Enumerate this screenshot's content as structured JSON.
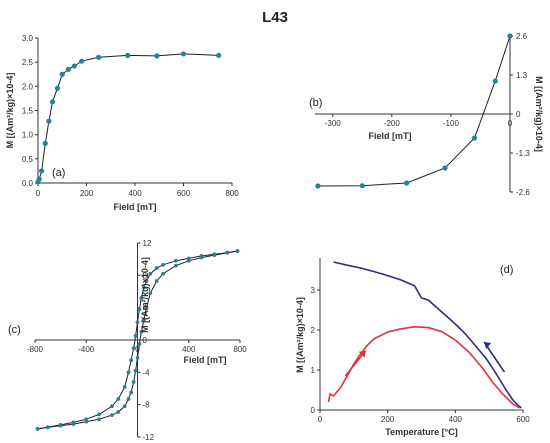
{
  "figure_title": "L43",
  "colors": {
    "curve": "#1f1f1f",
    "marker": "#2a7f99",
    "heating": "#2c2e83",
    "cooling": "#e0303a"
  },
  "chart_data": [
    {
      "id": "a",
      "type": "scatter",
      "panel_label": "(a)",
      "xlabel": "Field [mT]",
      "ylabel": "M [(Am²/kg)×10-4]",
      "xlim": [
        0,
        800
      ],
      "ylim": [
        0,
        3.0
      ],
      "xticks": [
        "0",
        "200",
        "400",
        "600",
        "800"
      ],
      "yticks": [
        "0.0",
        "0.5",
        "1.0",
        "1.5",
        "2.0",
        "2.5",
        "3.0"
      ],
      "x": [
        0,
        5,
        15,
        30,
        45,
        60,
        80,
        100,
        125,
        150,
        180,
        250,
        370,
        490,
        600,
        745
      ],
      "y": [
        0.02,
        0.08,
        0.25,
        0.82,
        1.28,
        1.68,
        1.96,
        2.25,
        2.35,
        2.42,
        2.52,
        2.6,
        2.64,
        2.63,
        2.67,
        2.64
      ]
    },
    {
      "id": "b",
      "type": "scatter",
      "panel_label": "(b)",
      "xlabel": "Field [mT]",
      "ylabel": "M [(Am²/kg)×10-4]",
      "xlim": [
        -330,
        0
      ],
      "ylim": [
        -2.6,
        2.6
      ],
      "xticks": [
        "-300",
        "-200",
        "-100",
        "0"
      ],
      "yticks": [
        "-2.6",
        "-1.3",
        "0",
        "1.3",
        "2.6"
      ],
      "x": [
        -325,
        -250,
        -175,
        -110,
        -60,
        -25,
        0
      ],
      "y": [
        -2.4,
        -2.39,
        -2.3,
        -1.8,
        -0.8,
        1.1,
        2.6
      ]
    },
    {
      "id": "c",
      "type": "line",
      "panel_label": "(c)",
      "xlabel": "Field [mT]",
      "ylabel": "M [(Am²/kg)×10-4]",
      "xlim": [
        -800,
        800
      ],
      "ylim": [
        -12,
        12
      ],
      "xticks": [
        "-800",
        "-400",
        "0",
        "400",
        "800"
      ],
      "yticks": [
        "-12",
        "-8",
        "-4",
        "0",
        "4",
        "8",
        "12"
      ],
      "series": [
        {
          "x": [
            -780,
            -700,
            -600,
            -500,
            -400,
            -300,
            -200,
            -150,
            -100,
            -70,
            -50,
            -30,
            -15,
            0,
            15,
            30,
            50,
            70,
            100,
            150,
            200,
            300,
            400,
            500,
            600,
            700,
            780
          ],
          "y": [
            -11,
            -10.8,
            -10.5,
            -10.2,
            -9.8,
            -9.2,
            -8.2,
            -7.3,
            -5.8,
            -4.0,
            -2.5,
            -1.0,
            0.5,
            2.2,
            3.8,
            5.2,
            6.5,
            7.3,
            8.2,
            8.9,
            9.3,
            9.8,
            10.1,
            10.4,
            10.6,
            10.8,
            11.0
          ]
        },
        {
          "x": [
            780,
            700,
            600,
            500,
            400,
            300,
            200,
            150,
            100,
            70,
            50,
            30,
            15,
            0,
            -15,
            -30,
            -50,
            -70,
            -100,
            -150,
            -200,
            -300,
            -400,
            -500,
            -600,
            -700,
            -780
          ],
          "y": [
            11.0,
            10.8,
            10.5,
            10.2,
            9.8,
            9.2,
            8.2,
            7.3,
            5.8,
            4.0,
            2.5,
            1.0,
            -0.5,
            -2.2,
            -3.8,
            -5.2,
            -6.5,
            -7.3,
            -8.2,
            -8.9,
            -9.3,
            -9.8,
            -10.1,
            -10.4,
            -10.6,
            -10.8,
            -11.0
          ]
        }
      ]
    },
    {
      "id": "d",
      "type": "line",
      "panel_label": "(d)",
      "xlabel": "Temperature [°C]",
      "ylabel": "M [(Am²/kg)×10-4]",
      "xlim": [
        0,
        600
      ],
      "ylim": [
        0,
        3.8
      ],
      "xticks": [
        "0",
        "200",
        "400",
        "600"
      ],
      "yticks": [
        "0",
        "1",
        "2",
        "3"
      ],
      "series": [
        {
          "x": [
            40,
            80,
            120,
            160,
            200,
            240,
            280,
            300,
            320,
            340,
            360,
            380,
            400,
            430,
            460,
            490,
            510,
            530,
            550,
            570,
            585,
            595
          ],
          "y": [
            3.7,
            3.62,
            3.55,
            3.46,
            3.36,
            3.25,
            3.1,
            2.8,
            2.75,
            2.6,
            2.45,
            2.3,
            2.15,
            1.9,
            1.6,
            1.3,
            1.05,
            0.78,
            0.5,
            0.25,
            0.12,
            0.05
          ]
        },
        {
          "x": [
            25,
            30,
            40,
            60,
            80,
            100,
            120,
            140,
            160,
            200,
            240,
            280,
            320,
            360,
            400,
            440,
            480,
            510,
            540,
            570,
            590
          ],
          "y": [
            0.2,
            0.4,
            0.35,
            0.55,
            0.85,
            1.15,
            1.4,
            1.62,
            1.78,
            1.95,
            2.03,
            2.08,
            2.06,
            1.96,
            1.75,
            1.45,
            1.05,
            0.7,
            0.4,
            0.15,
            0.05
          ]
        }
      ]
    }
  ]
}
